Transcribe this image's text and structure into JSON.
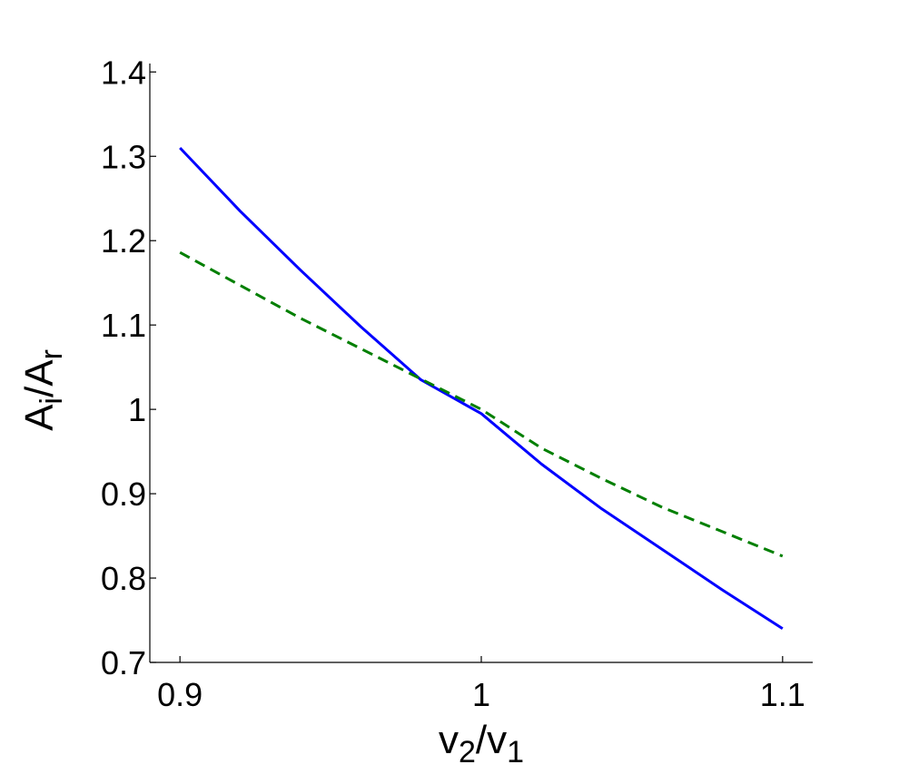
{
  "chart_data": {
    "type": "line",
    "title": "",
    "xlabel": {
      "base": "v",
      "sub1": "2",
      "slash": "/",
      "base2": "v",
      "sub2": "1"
    },
    "ylabel": {
      "base": "A",
      "sub1": "i",
      "slash": "/",
      "base2": "A",
      "sub2": "r"
    },
    "xlim": [
      0.89,
      1.11
    ],
    "ylim": [
      0.7,
      1.41
    ],
    "xticks": [
      {
        "value": 0.9,
        "label": "0.9"
      },
      {
        "value": 1.0,
        "label": "1"
      },
      {
        "value": 1.1,
        "label": "1.1"
      }
    ],
    "yticks": [
      {
        "value": 0.7,
        "label": "0.7"
      },
      {
        "value": 0.8,
        "label": "0.8"
      },
      {
        "value": 0.9,
        "label": "0.9"
      },
      {
        "value": 1.0,
        "label": "1"
      },
      {
        "value": 1.1,
        "label": "1.1"
      },
      {
        "value": 1.2,
        "label": "1.2"
      },
      {
        "value": 1.3,
        "label": "1.3"
      },
      {
        "value": 1.4,
        "label": "1.4"
      }
    ],
    "grid": false,
    "series": [
      {
        "style": "solid",
        "color": "#0000ff",
        "x": [
          0.9,
          0.92,
          0.94,
          0.96,
          0.98,
          1.0,
          1.02,
          1.04,
          1.06,
          1.08,
          1.1
        ],
        "y": [
          1.31,
          1.235,
          1.165,
          1.098,
          1.035,
          0.995,
          0.935,
          0.882,
          0.834,
          0.786,
          0.74
        ]
      },
      {
        "style": "dashed",
        "color": "#007f00",
        "x": [
          0.9,
          0.92,
          0.94,
          0.96,
          0.98,
          1.0,
          1.02,
          1.04,
          1.06,
          1.08,
          1.1
        ],
        "y": [
          1.186,
          1.147,
          1.108,
          1.072,
          1.036,
          1.0,
          0.954,
          0.918,
          0.884,
          0.855,
          0.826
        ]
      }
    ]
  }
}
